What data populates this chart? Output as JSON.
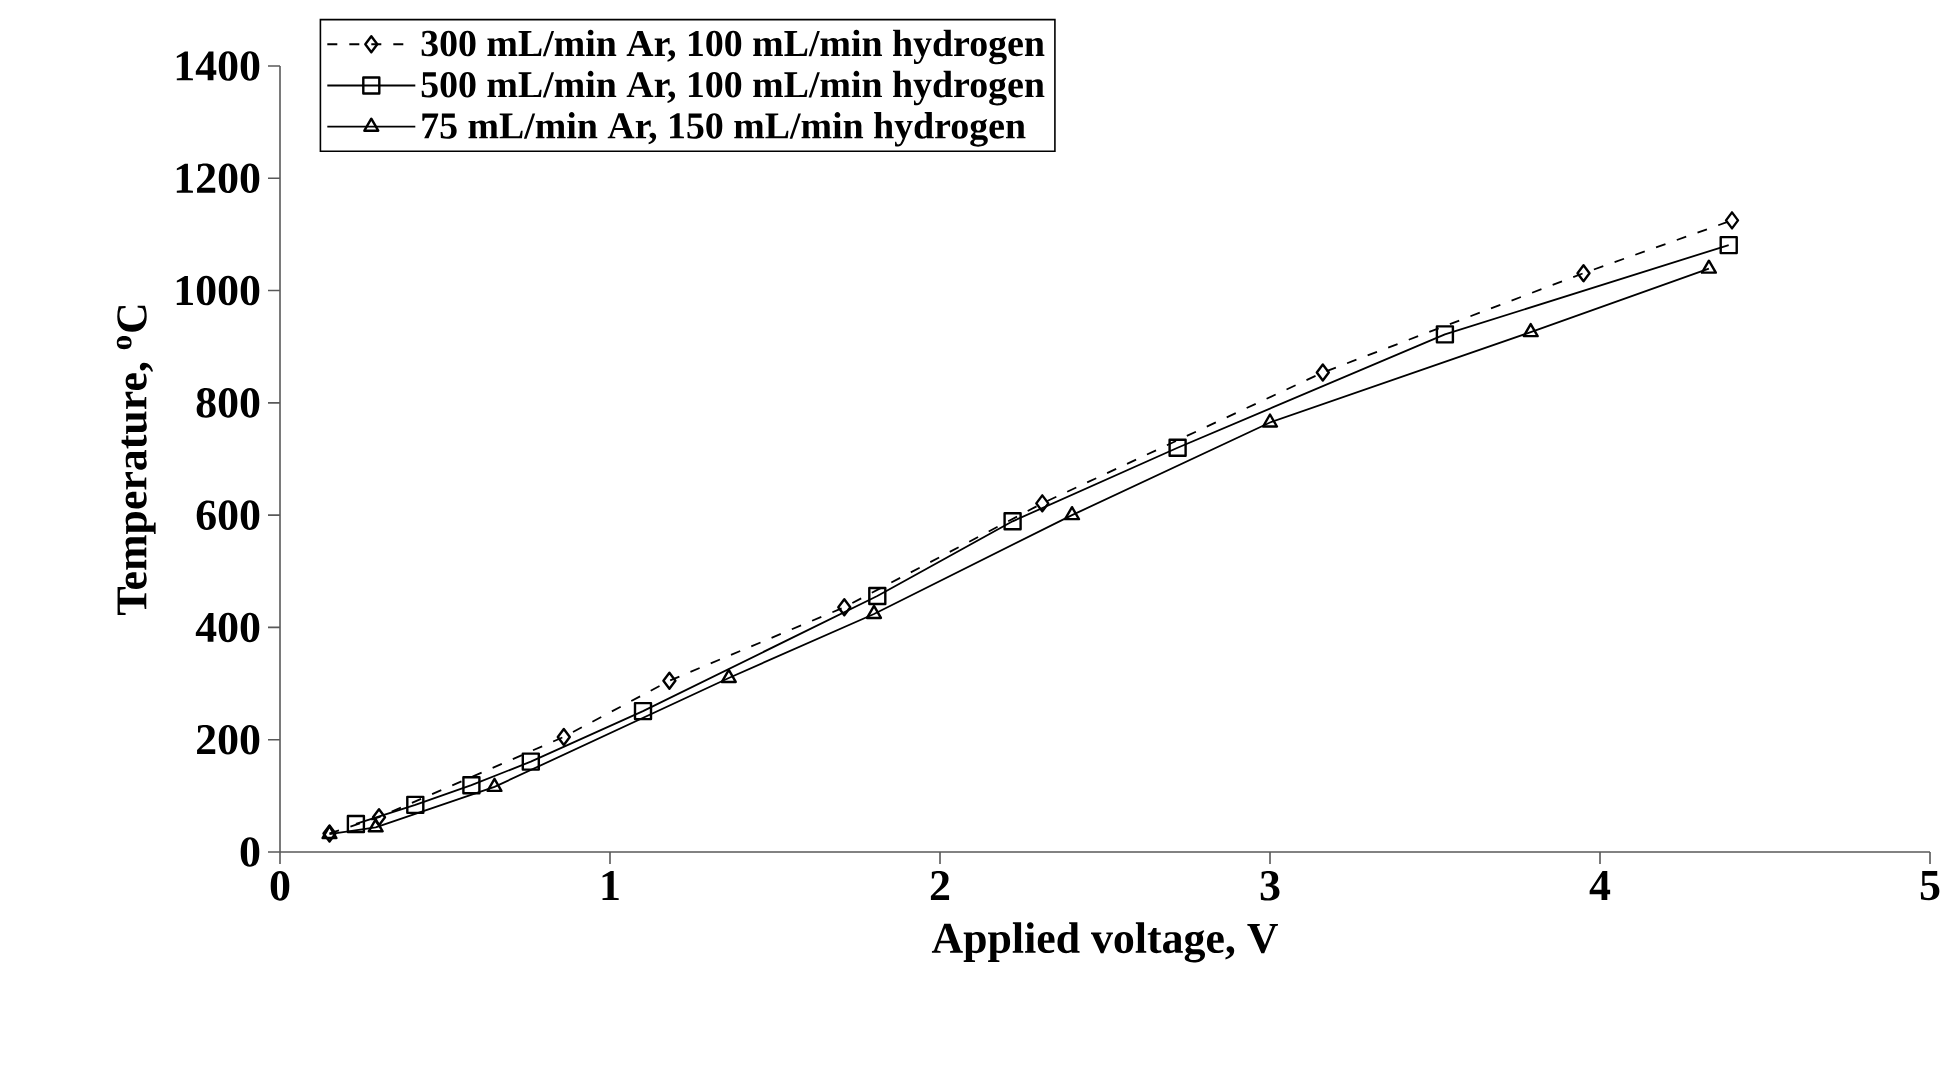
{
  "chart_data": {
    "type": "line",
    "xlabel": "Applied voltage, V",
    "ylabel": "Temperature, $^{o}$C",
    "xlim": [
      0,
      5
    ],
    "xticks": [
      0,
      1,
      2,
      3,
      4,
      5
    ],
    "ylim": [
      0,
      1400
    ],
    "yticks": [
      0,
      200,
      400,
      600,
      800,
      1000,
      1200,
      1400
    ],
    "grid": false,
    "legend": "top left",
    "series": [
      {
        "name": "300 mL/min Ar, 100 mL/min hydrogen",
        "color": "#000000",
        "marker": "diamond",
        "line_style": "dashed",
        "x": [
          0.15,
          0.3,
          0.86,
          1.18,
          1.71,
          2.31,
          3.16,
          3.95,
          4.4
        ],
        "values": [
          33,
          62,
          205,
          305,
          436,
          621,
          854,
          1031,
          1125
        ]
      },
      {
        "name": "500 mL/min Ar, 100 mL/min hydrogen",
        "color": "#000000",
        "marker": "square",
        "line_style": "solid",
        "x": [
          0.23,
          0.41,
          0.58,
          0.76,
          1.1,
          1.81,
          2.22,
          2.72,
          3.53,
          4.39
        ],
        "values": [
          50,
          84,
          119,
          161,
          251,
          456,
          589,
          720,
          922,
          1081
        ]
      },
      {
        "name": "75 mL/min Ar, 150 mL/min hydrogen",
        "color": "#000000",
        "marker": "triangle",
        "line_style": "solid",
        "x": [
          0.15,
          0.29,
          0.65,
          1.36,
          1.8,
          2.4,
          3.0,
          3.79,
          4.33
        ],
        "values": [
          32,
          44,
          116,
          310,
          424,
          600,
          765,
          926,
          1039
        ]
      }
    ]
  }
}
